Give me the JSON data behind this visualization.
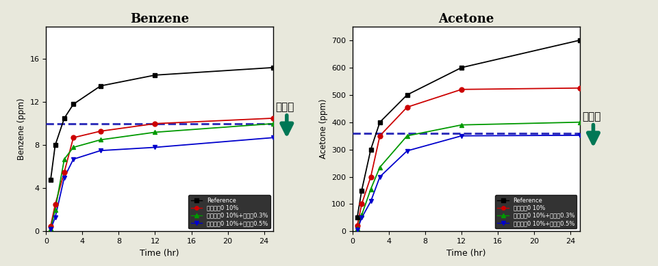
{
  "benzene": {
    "title": "Benzene",
    "ylabel": "Benzene (ppm)",
    "xlabel": "Time (hr)",
    "ylim": [
      0,
      19
    ],
    "yticks": [
      0,
      4,
      8,
      12,
      16
    ],
    "xlim": [
      0,
      25
    ],
    "xticks": [
      0,
      4,
      8,
      12,
      16,
      20,
      24
    ],
    "target_line": 10.0,
    "series": [
      {
        "label": "Reference",
        "color": "#000000",
        "marker": "s",
        "markersize": 5,
        "x": [
          0.5,
          1,
          2,
          3,
          6,
          12,
          25
        ],
        "y": [
          4.8,
          8.0,
          10.5,
          11.8,
          13.5,
          14.5,
          15.2
        ]
      },
      {
        "label": "활성백턤0 10%",
        "color": "#cc0000",
        "marker": "o",
        "markersize": 5,
        "x": [
          0.5,
          1,
          2,
          3,
          6,
          12,
          25
        ],
        "y": [
          0.5,
          2.5,
          5.5,
          8.7,
          9.3,
          10.0,
          10.5
        ]
      },
      {
        "label": "활성백턤0 10%+분해제0.3%",
        "color": "#009900",
        "marker": "^",
        "markersize": 5,
        "x": [
          0.5,
          1,
          2,
          3,
          6,
          12,
          25
        ],
        "y": [
          0.3,
          2.0,
          6.7,
          7.8,
          8.5,
          9.2,
          10.0
        ]
      },
      {
        "label": "활성백턤0 10%+분해제0.5%",
        "color": "#0000cc",
        "marker": "v",
        "markersize": 5,
        "x": [
          0.5,
          1,
          2,
          3,
          6,
          12,
          25
        ],
        "y": [
          0.2,
          1.3,
          5.0,
          6.7,
          7.5,
          7.8,
          8.7
        ]
      }
    ]
  },
  "acetone": {
    "title": "Acetone",
    "ylabel": "Acetone (ppm)",
    "xlabel": "Time (hr)",
    "ylim": [
      0,
      750
    ],
    "yticks": [
      0,
      100,
      200,
      300,
      400,
      500,
      600,
      700
    ],
    "xlim": [
      0,
      25
    ],
    "xticks": [
      0,
      4,
      8,
      12,
      16,
      20,
      24
    ],
    "target_line": 360.0,
    "series": [
      {
        "label": "Reference",
        "color": "#000000",
        "marker": "s",
        "markersize": 5,
        "x": [
          0.5,
          1,
          2,
          3,
          6,
          12,
          25
        ],
        "y": [
          50,
          150,
          300,
          400,
          500,
          600,
          700
        ]
      },
      {
        "label": "활성백턤0 10%",
        "color": "#cc0000",
        "marker": "o",
        "markersize": 5,
        "x": [
          0.5,
          1,
          2,
          3,
          6,
          12,
          25
        ],
        "y": [
          20,
          100,
          200,
          350,
          455,
          520,
          525
        ]
      },
      {
        "label": "활성백턤0 10%+분해제0.3%",
        "color": "#009900",
        "marker": "^",
        "markersize": 5,
        "x": [
          0.5,
          1,
          2,
          3,
          6,
          12,
          25
        ],
        "y": [
          10,
          60,
          155,
          235,
          350,
          390,
          400
        ]
      },
      {
        "label": "활성백턤0 10%+분해제0.5%",
        "color": "#0000cc",
        "marker": "v",
        "markersize": 5,
        "x": [
          0.5,
          1,
          2,
          3,
          6,
          12,
          25
        ],
        "y": [
          5,
          50,
          110,
          200,
          295,
          350,
          352
        ]
      }
    ]
  },
  "legend_labels": [
    "Reference",
    "활성백턤0 10%",
    "활성백턤0 10%+분해제0.3%",
    "활성백턤0 10%+분해제0.5%"
  ],
  "mokpyochi_text": "목표치",
  "background_color": "#e8e8dc",
  "plot_bg_color": "#ffffff",
  "dashed_color": "#3333bb",
  "arrow_color": "#007755"
}
